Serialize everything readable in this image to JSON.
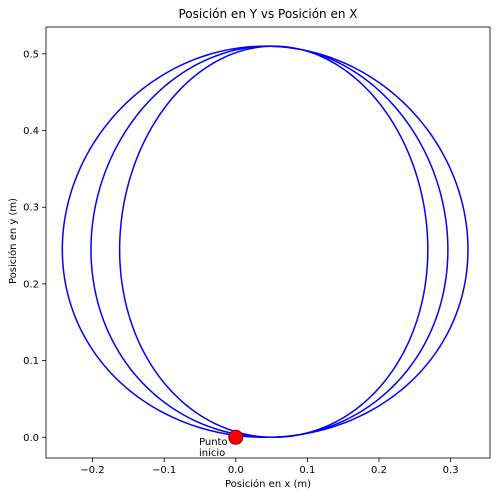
{
  "chart_data": {
    "type": "line",
    "title": "Posición en Y vs Posición en X",
    "xlabel": "Posición en x (m)",
    "ylabel": "Posición en y (m)",
    "xlim": [
      -0.265,
      0.355
    ],
    "ylim": [
      -0.027,
      0.535
    ],
    "xticks": [
      -0.2,
      -0.1,
      0.0,
      0.1,
      0.2,
      0.3
    ],
    "xtick_labels": [
      "−0.2",
      "−0.1",
      "0.0",
      "0.1",
      "0.2",
      "0.3"
    ],
    "yticks": [
      0.0,
      0.1,
      0.2,
      0.3,
      0.4,
      0.5
    ],
    "ytick_labels": [
      "0.0",
      "0.1",
      "0.2",
      "0.3",
      "0.4",
      "0.5"
    ],
    "grid": false,
    "line_color": "#0000ff",
    "loops": [
      {
        "cx": 0.041,
        "cy": 0.255,
        "rx": 0.283,
        "ry": 0.255
      },
      {
        "cx": 0.047,
        "cy": 0.255,
        "rx": 0.249,
        "ry": 0.255
      },
      {
        "cx": 0.053,
        "cy": 0.255,
        "rx": 0.215,
        "ry": 0.255
      }
    ],
    "start_point": {
      "x": 0.0,
      "y": 0.0,
      "color": "#ff0000"
    },
    "annotation": {
      "line1": "Punto",
      "line2": "inicio"
    }
  }
}
